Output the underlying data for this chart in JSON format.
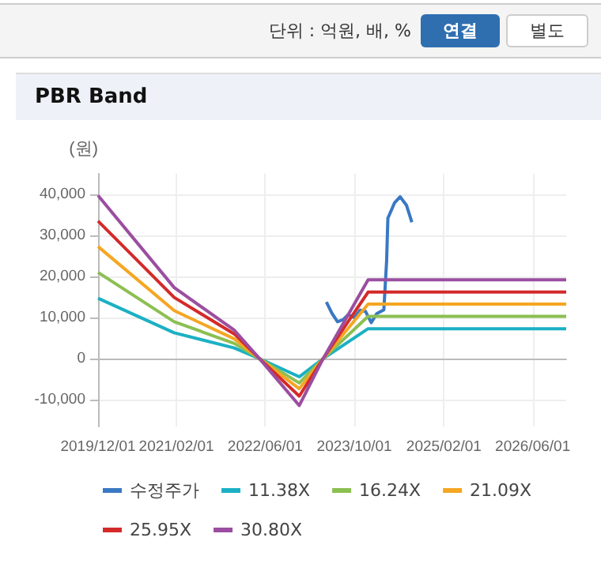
{
  "chart_data": {
    "type": "line",
    "title": "PBR Band",
    "ylabel": "(원)",
    "annotations": [
      "단위 : 억원, 배, %",
      "연결",
      "별도"
    ],
    "x": [
      "2019-12-01",
      "2021-01-20",
      "2021-12-15",
      "2022-05-01",
      "2022-12-04",
      "2023-04-13",
      "2023-12-15",
      "2026-12-01"
    ],
    "series": [
      {
        "name": "수정주가",
        "color": "#3a78c3",
        "x": [
          "2023-05-01",
          "2023-06-01",
          "2023-07-01",
          "2023-08-01",
          "2023-08-28",
          "2023-10-01",
          "2023-11-01",
          "2023-12-01",
          "2024-01-01",
          "2024-02-01",
          "2024-03-10",
          "2024-03-25",
          "2024-04-01",
          "2024-05-07",
          "2024-06-07",
          "2024-07-12",
          "2024-08-10"
        ],
        "values": [
          13800,
          11000,
          9000,
          9500,
          10700,
          10000,
          11800,
          11500,
          8800,
          11000,
          11900,
          23700,
          34200,
          37900,
          39400,
          37300,
          33200
        ]
      },
      {
        "name": "11.38X",
        "color": "#1cb0c4",
        "values": [
          14700,
          6300,
          2600,
          0,
          -4400,
          0,
          7300,
          7300
        ]
      },
      {
        "name": "16.24X",
        "color": "#8cbf52",
        "values": [
          21000,
          9000,
          3700,
          0,
          -5900,
          0,
          10300,
          10300
        ]
      },
      {
        "name": "21.09X",
        "color": "#f5a623",
        "values": [
          27300,
          11700,
          4800,
          0,
          -7300,
          0,
          13300,
          13300
        ]
      },
      {
        "name": "25.95X",
        "color": "#d42a2a",
        "values": [
          33500,
          14900,
          6000,
          0,
          -9100,
          0,
          16200,
          16200
        ]
      },
      {
        "name": "30.80X",
        "color": "#9b4ea0",
        "values": [
          39700,
          17300,
          6900,
          0,
          -11400,
          0,
          19200,
          19200
        ]
      }
    ],
    "xlim": [
      "2019-12-01",
      "2026-12-01"
    ],
    "xticks": [
      {
        "value": "2019-12-01",
        "label": "2019/12/01"
      },
      {
        "value": "2021-02-01",
        "label": "2021/02/01"
      },
      {
        "value": "2022-06-01",
        "label": "2022/06/01"
      },
      {
        "value": "2023-10-01",
        "label": "2023/10/01"
      },
      {
        "value": "2025-02-01",
        "label": "2025/02/01"
      },
      {
        "value": "2026-06-01",
        "label": "2026/06/01"
      }
    ],
    "ylim": [
      -16500,
      45000
    ],
    "yticks": [
      {
        "value": -10000,
        "label": "-10,000"
      },
      0,
      {
        "value": 10000,
        "label": "10,000"
      },
      {
        "value": 20000,
        "label": "20,000"
      },
      {
        "value": 30000,
        "label": "30,000"
      },
      {
        "value": 40000,
        "label": "40,000"
      }
    ],
    "grid": true,
    "legend": "bottom",
    "marker": "none",
    "line_style": "solid"
  }
}
